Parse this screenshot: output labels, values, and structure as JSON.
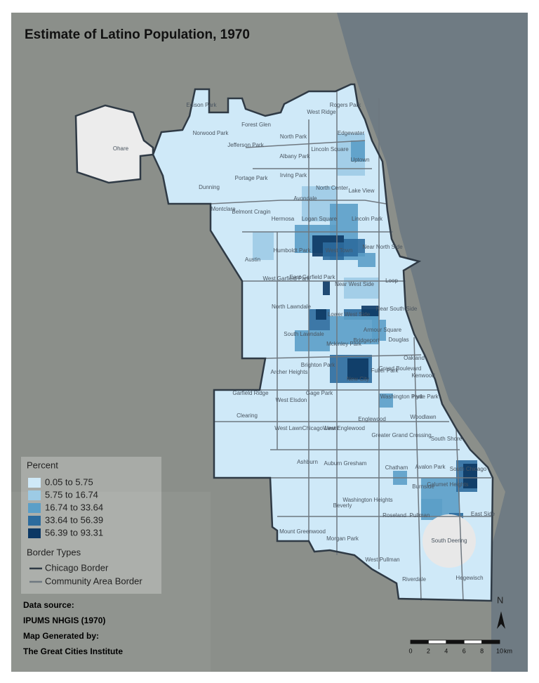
{
  "title": "Estimate of Latino Population, 1970",
  "legend": {
    "title": "Percent",
    "classes": [
      {
        "label": "0.05 to 5.75",
        "color": "#cfe9f8"
      },
      {
        "label": "5.75 to 16.74",
        "color": "#9dcbe5"
      },
      {
        "label": "16.74 to 33.64",
        "color": "#5b9fc8"
      },
      {
        "label": "33.64 to 56.39",
        "color": "#2c6b9d"
      },
      {
        "label": "56.39 to 93.31",
        "color": "#0c3864"
      }
    ],
    "border_title": "Border Types",
    "borders": [
      {
        "label": "Chicago Border",
        "color": "#2f3a45"
      },
      {
        "label": "Community Area Border",
        "color": "#6f7880"
      }
    ]
  },
  "notes": [
    "Data source:",
    "IPUMS NHGIS (1970)",
    "Map Generated by:",
    "The Great Cities Institute"
  ],
  "scale": {
    "ticks": [
      0,
      2,
      4,
      6,
      8,
      10
    ],
    "unit": "km"
  },
  "north": "N",
  "areas": [
    "Edison Park",
    "Forest Glen",
    "Rogers Park",
    "West Ridge",
    "Norwood Park",
    "Jefferson Park",
    "North Park",
    "Edgewater",
    "Lincoln Square",
    "Ohare",
    "Albany Park",
    "Uptown",
    "Portage Park",
    "Irving Park",
    "North Center",
    "Lake View",
    "Dunning",
    "Montclare",
    "Belmont Cragin",
    "Avondale",
    "Logan Square",
    "Hermosa",
    "Lincoln Park",
    "Humboldt Park",
    "West Town",
    "Near North Side",
    "Austin",
    "West Garfield Park",
    "East Garfield Park",
    "Near West Side",
    "Loop",
    "Near South Side",
    "North Lawndale",
    "Lower West Side",
    "South Lawndale",
    "Armour Square",
    "Mckinley Park",
    "Bridgeport",
    "Douglas",
    "Oakland",
    "Brighton Park",
    "Archer Heights",
    "Grand Boulevard",
    "Kenwood",
    "New City",
    "Fuller Park",
    "Garfield Ridge",
    "Gage Park",
    "West Elsdon",
    "Washington Park",
    "Hyde Park",
    "Clearing",
    "Englewood",
    "Woodlawn",
    "West Lawn",
    "Chicago Lawn",
    "West Englewood",
    "Greater Grand Crossing",
    "South Shore",
    "Ashburn",
    "Auburn Gresham",
    "Chatham",
    "Avalon Park",
    "South Chicago",
    "Burnside",
    "Calumet Heights",
    "Washington Heights",
    "Beverly",
    "Roseland",
    "Pullman",
    "East Side",
    "Mount Greenwood",
    "Morgan Park",
    "South Deering",
    "West Pullman",
    "Riverdale",
    "Hegewisch"
  ]
}
